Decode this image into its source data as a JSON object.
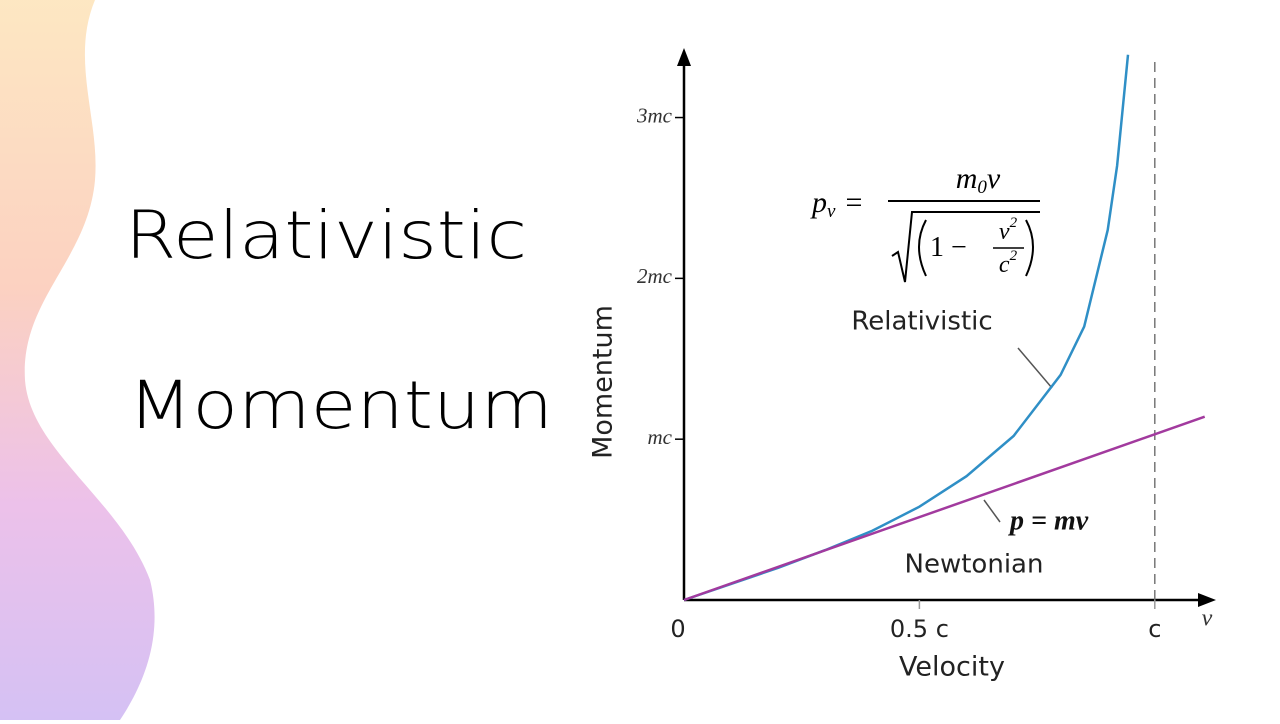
{
  "slide": {
    "title_lines": [
      "Relativistic",
      "Momentum"
    ]
  },
  "chart_data": {
    "type": "line",
    "x_label": "Velocity",
    "y_label": "Momentum",
    "x_var": "v",
    "xlim": [
      0,
      1.13
    ],
    "ylim": [
      0,
      3.42
    ],
    "xticks": [
      {
        "value": 0,
        "label": "0"
      },
      {
        "value": 0.5,
        "label": "0.5 c"
      },
      {
        "value": 1,
        "label": "c"
      }
    ],
    "yticks": [
      {
        "value": 1,
        "label": "mc"
      },
      {
        "value": 2,
        "label": "2mc"
      },
      {
        "value": 3,
        "label": "3mc"
      }
    ],
    "asymptote_x": 1,
    "series": [
      {
        "name": "Relativistic",
        "color": "#2f8fc6",
        "x": [
          0,
          0.1,
          0.2,
          0.3,
          0.4,
          0.5,
          0.6,
          0.7,
          0.8,
          0.85,
          0.9,
          0.92,
          0.943
        ],
        "values": [
          0,
          0.1,
          0.2,
          0.31,
          0.43,
          0.58,
          0.77,
          1.02,
          1.4,
          1.7,
          2.3,
          2.7,
          3.39
        ]
      },
      {
        "name": "Newtonian",
        "color": "#a23a9e",
        "formula": "p = mv",
        "x": [
          0,
          1.106
        ],
        "values": [
          0,
          1.14
        ]
      }
    ],
    "formula": {
      "lhs": "p",
      "lhs_sub": "v",
      "equals": "=",
      "numerator": "m",
      "numerator_sub": "0",
      "numerator_tail": "v",
      "one_minus": "1 −",
      "frac_num": "v",
      "frac_num_sup": "2",
      "frac_den": "c",
      "frac_den_sup": "2"
    }
  }
}
